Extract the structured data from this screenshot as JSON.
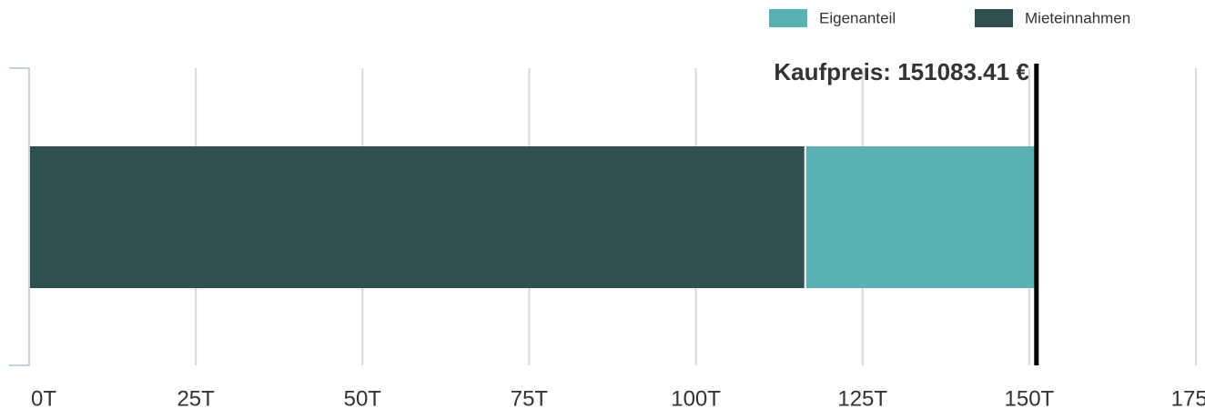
{
  "chart_data": {
    "type": "stacked-bar-horizontal",
    "series": [
      {
        "name": "Eigenanteil",
        "color": "#5ab1b3",
        "values": [
          34683.41
        ]
      },
      {
        "name": "Mieteinnahmen",
        "color": "#30504f",
        "values": [
          116400
        ]
      }
    ],
    "xlim": [
      0,
      175000
    ],
    "xticks": [
      {
        "value": 0,
        "label": "0T"
      },
      {
        "value": 25000,
        "label": "25T"
      },
      {
        "value": 50000,
        "label": "50T"
      },
      {
        "value": 75000,
        "label": "75T"
      },
      {
        "value": 100000,
        "label": "100T"
      },
      {
        "value": 125000,
        "label": "125T"
      },
      {
        "value": 150000,
        "label": "150T"
      },
      {
        "value": 175000,
        "label": "175T"
      }
    ],
    "grid": true,
    "legend": "top-right",
    "reference_line": {
      "value": 151083.41,
      "label": "Kaufpreis: 151083.41 €",
      "color": "#000000"
    }
  }
}
